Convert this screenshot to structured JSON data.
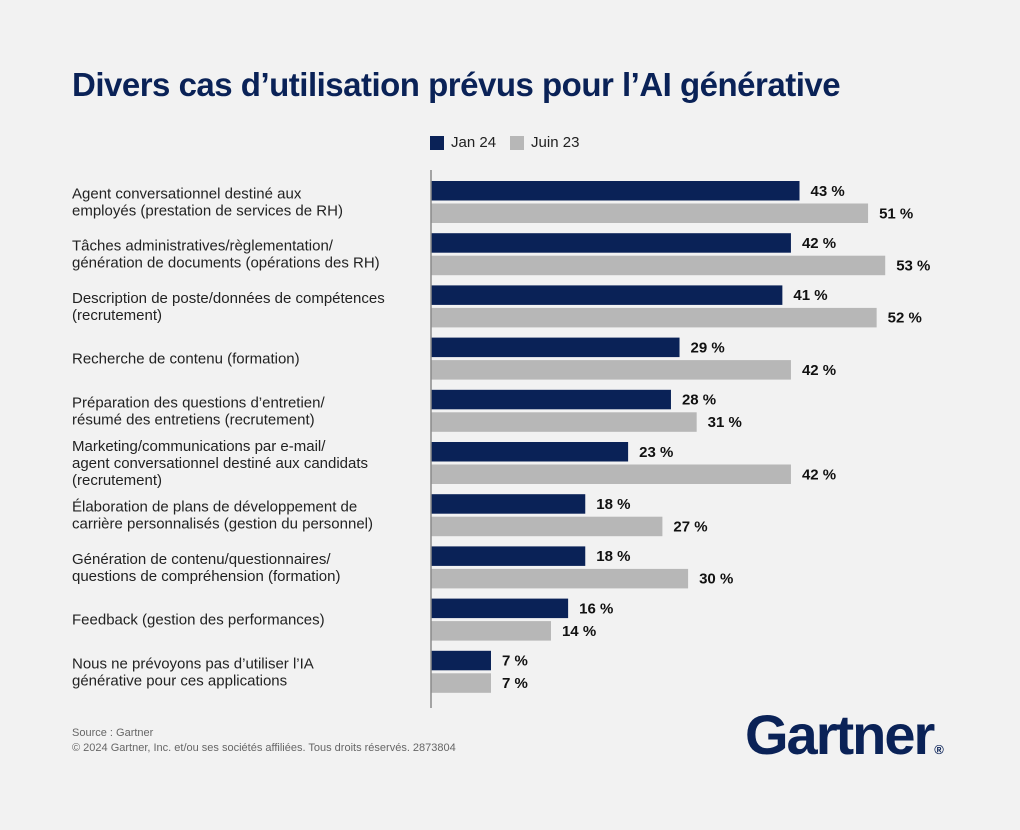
{
  "title": "Divers cas d’utilisation prévus pour l’AI générative",
  "source_lines": [
    "Source : Gartner",
    "© 2024 Gartner, Inc. et/ou ses sociétés affiliées. Tous droits réservés. 2873804"
  ],
  "logo": {
    "text": "Gartner",
    "mark": "®"
  },
  "colors": {
    "jan24": "#0a2257",
    "jun23": "#b7b7b7",
    "axis": "#8a8a8a",
    "title": "#0a2257"
  },
  "chart_data": {
    "type": "bar",
    "orientation": "horizontal",
    "value_suffix": " %",
    "legend_position": "top",
    "grid": false,
    "xlim": [
      0,
      65
    ],
    "categories": [
      [
        "Agent conversationnel destiné aux",
        "employés (prestation de services de RH)"
      ],
      [
        "Tâches administratives/règlementation/",
        "génération de documents (opérations des RH)"
      ],
      [
        "Description de poste/données de compétences",
        "(recrutement)"
      ],
      [
        "Recherche de contenu (formation)"
      ],
      [
        "Préparation des questions d’entretien/",
        "résumé des entretiens (recrutement)"
      ],
      [
        "Marketing/communications par e-mail/",
        "agent conversationnel destiné aux candidats",
        "(recrutement)"
      ],
      [
        "Élaboration de plans de développement de",
        "carrière personnalisés (gestion du personnel)"
      ],
      [
        "Génération de contenu/questionnaires/",
        "questions de compréhension (formation)"
      ],
      [
        "Feedback (gestion des performances)"
      ],
      [
        "Nous ne prévoyons pas d’utiliser l’IA",
        "générative pour ces applications"
      ]
    ],
    "series": [
      {
        "name": "Jan 24",
        "values": [
          43,
          42,
          41,
          29,
          28,
          23,
          18,
          18,
          16,
          7
        ]
      },
      {
        "name": "Juin 23",
        "values": [
          51,
          53,
          52,
          42,
          31,
          42,
          27,
          30,
          14,
          7
        ]
      }
    ]
  }
}
